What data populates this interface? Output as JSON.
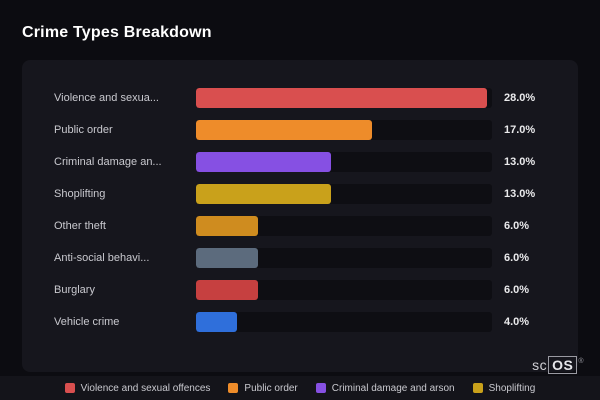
{
  "title": "Crime Types Breakdown",
  "chart_data": {
    "type": "bar",
    "orientation": "horizontal",
    "categories": [
      "Violence and sexua...",
      "Public order",
      "Criminal damage an...",
      "Shoplifting",
      "Other theft",
      "Anti-social behavi...",
      "Burglary",
      "Vehicle crime"
    ],
    "values": [
      28.0,
      17.0,
      13.0,
      13.0,
      6.0,
      6.0,
      6.0,
      4.0
    ],
    "value_labels": [
      "28.0%",
      "17.0%",
      "13.0%",
      "13.0%",
      "6.0%",
      "6.0%",
      "6.0%",
      "4.0%"
    ],
    "bar_colors": [
      "#d94f4f",
      "#ee8c2a",
      "#8650e3",
      "#c9a11b",
      "#cf8c1f",
      "#5c6b7d",
      "#c64040",
      "#2f6fdb"
    ],
    "xlim": [
      0,
      28.5
    ],
    "grid": false,
    "legend_position": "bottom"
  },
  "legend": [
    {
      "label": "Violence and sexual offences",
      "color": "#d94f4f"
    },
    {
      "label": "Public order",
      "color": "#ee8c2a"
    },
    {
      "label": "Criminal damage and arson",
      "color": "#8650e3"
    },
    {
      "label": "Shoplifting",
      "color": "#c9a11b"
    }
  ],
  "watermark": {
    "prefix": "sc",
    "os": "OS",
    "reg": "®"
  },
  "colors": {
    "background": "#0c0c11",
    "panel": "#16161d",
    "track": "#0e0e13",
    "legend_strip": "#14141a"
  }
}
